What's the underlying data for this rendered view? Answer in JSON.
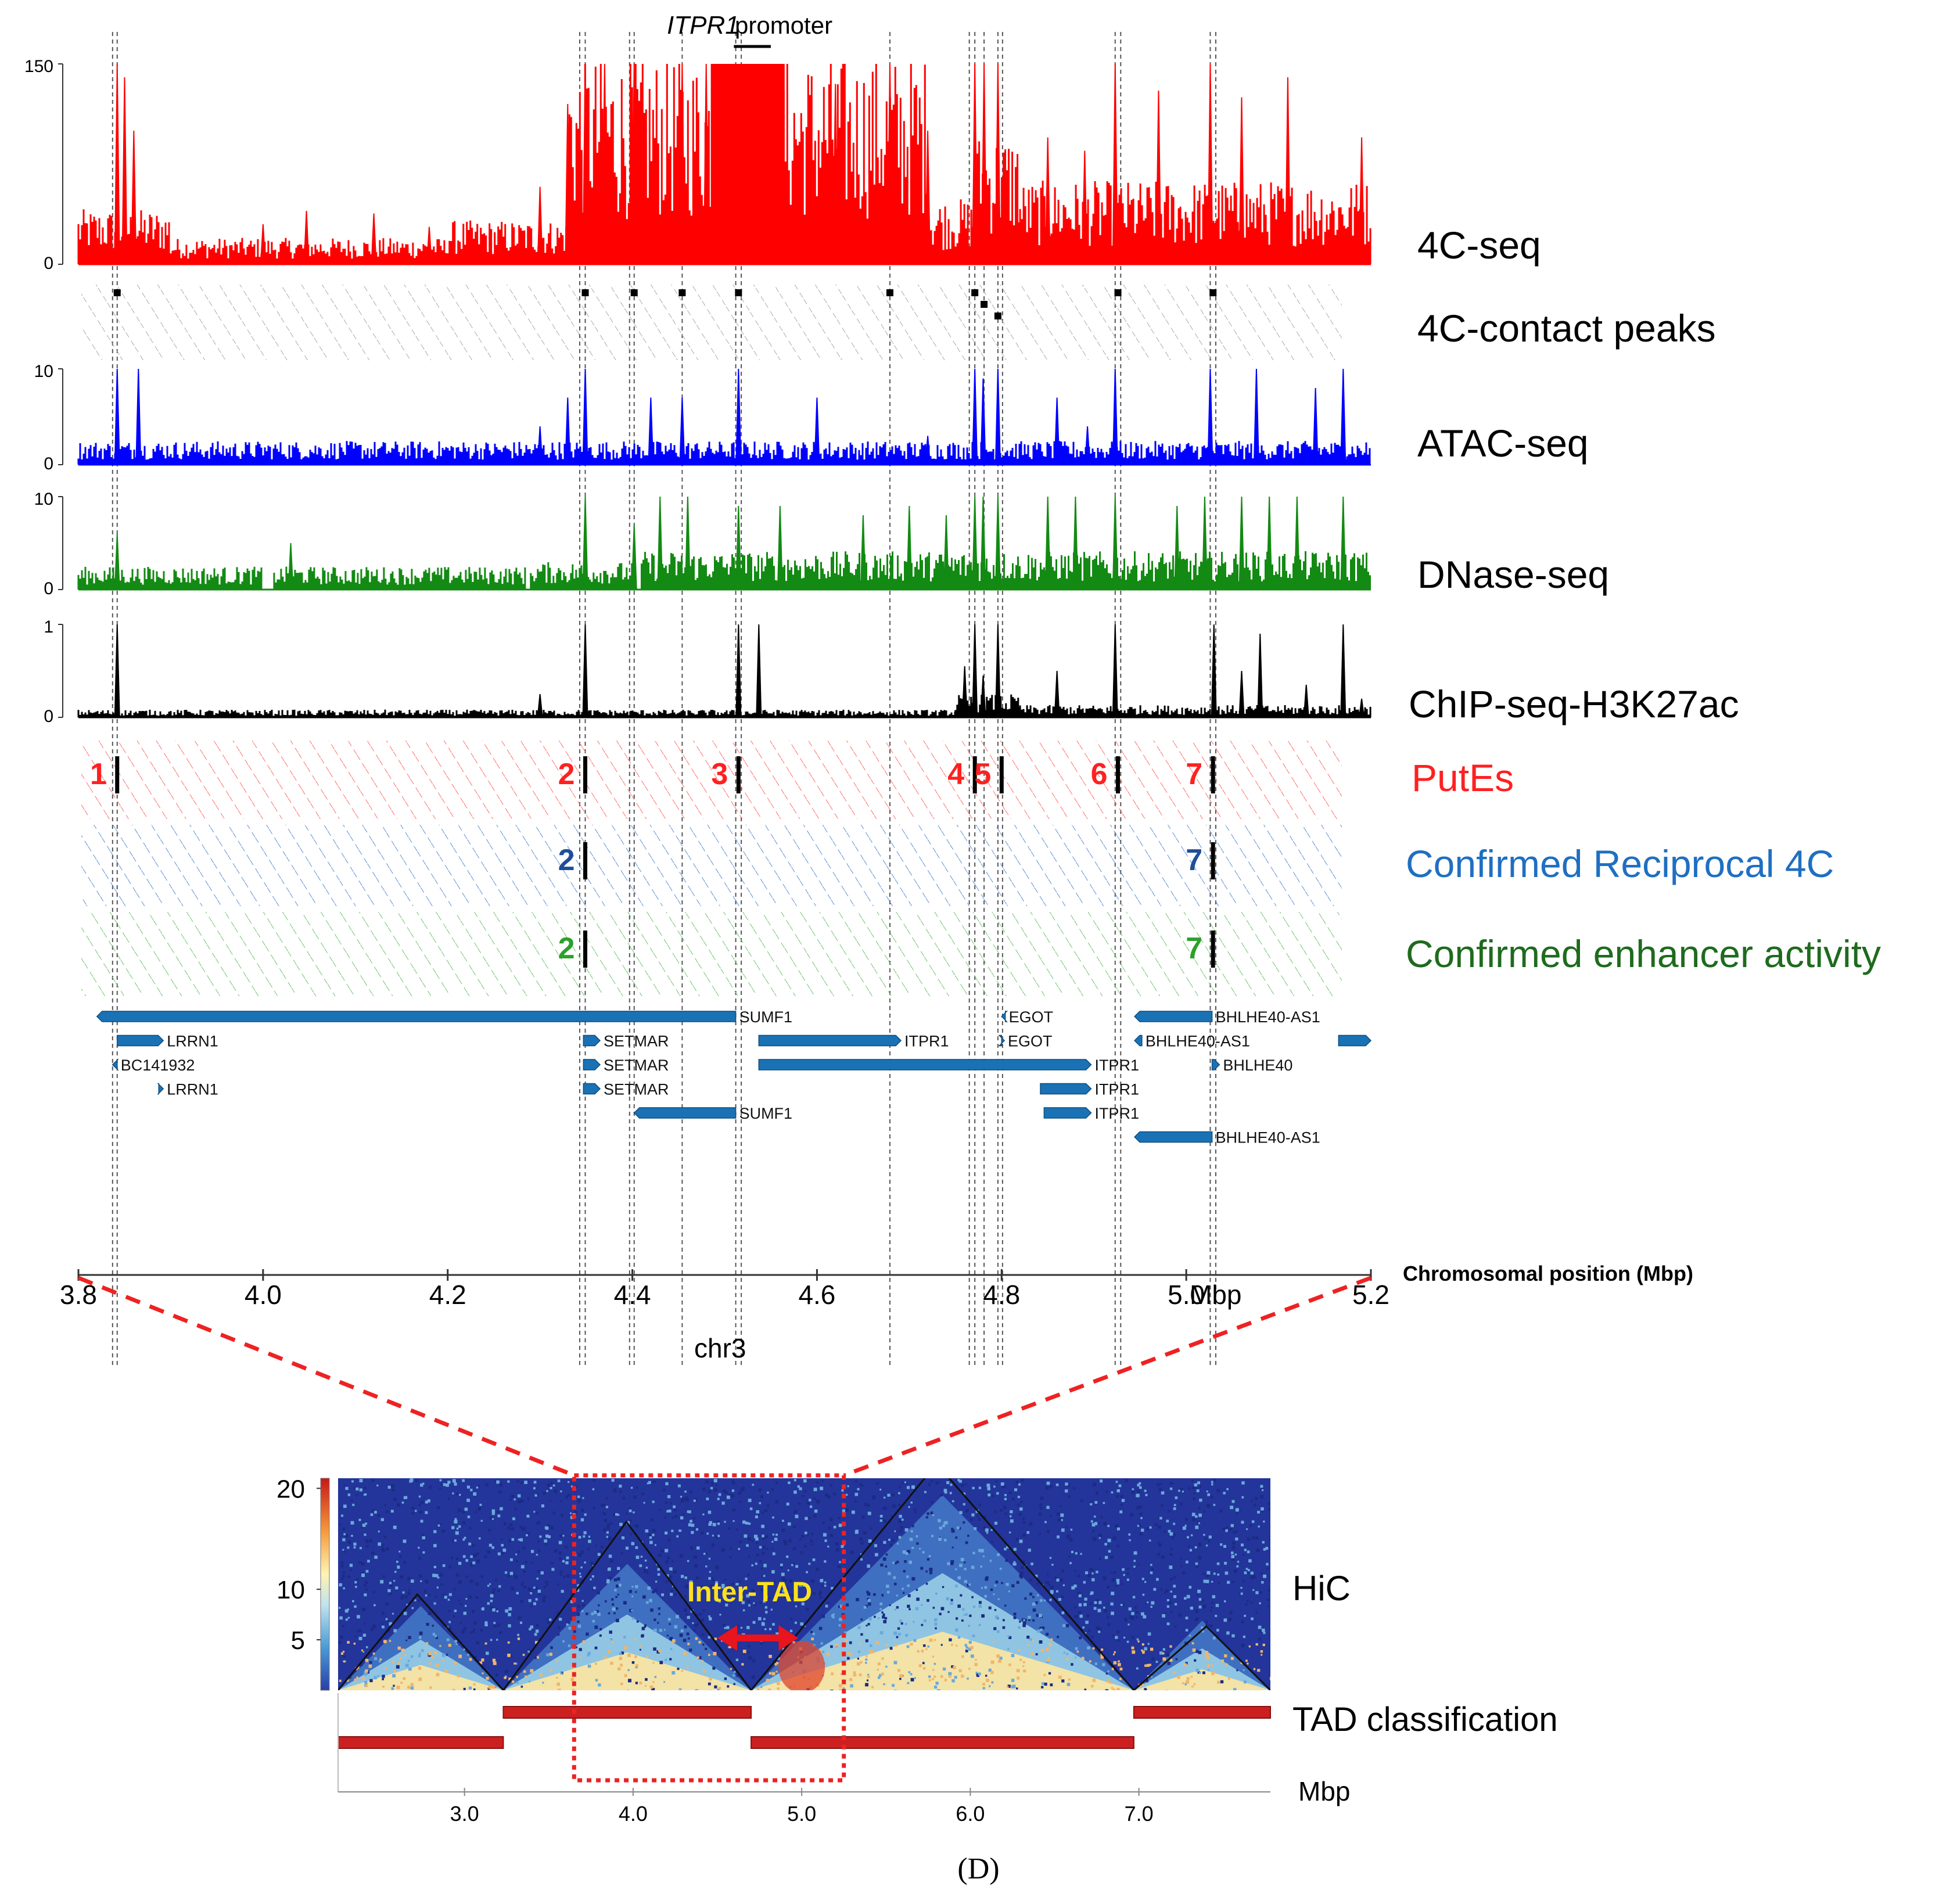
{
  "figure": {
    "caption": "(D)",
    "promoter_gene": "ITPR1",
    "promoter_word": "promoter",
    "chr_label": "chr3",
    "axis_title": "Chromosomal position (Mbp)",
    "mbp_unit": "Mbp"
  },
  "colors": {
    "c4": "#ff0000",
    "atac": "#0000ff",
    "dnase": "#138a13",
    "chip": "#000000",
    "pute": "#ff2020",
    "recip": "#1f6fc2",
    "enh": "#2ca02c",
    "gene": "#1a72b5",
    "recip_num": "#1f4e9a",
    "enh_label": "#1e6b1e",
    "zoom": "#ee2222",
    "tad_bar": "#cc2020"
  },
  "chart_data": [
    {
      "type": "area",
      "subtype": "genome_browser",
      "xlim": [
        3.8,
        5.2
      ],
      "xticks": [
        {
          "v": 3.8,
          "label": "3.8"
        },
        {
          "v": 4.0,
          "label": "4.0"
        },
        {
          "v": 4.2,
          "label": "4.2"
        },
        {
          "v": 4.4,
          "label": "4.4"
        },
        {
          "v": 4.6,
          "label": "4.6"
        },
        {
          "v": 4.8,
          "label": "4.8"
        },
        {
          "v": 5.0,
          "label": "5.0"
        },
        {
          "v": 5.2,
          "label": "5.2"
        }
      ],
      "guide_positions": [
        3.837,
        3.842,
        4.343,
        4.349,
        4.397,
        4.402,
        4.454,
        4.512,
        4.518,
        4.679,
        4.765,
        4.771,
        4.781,
        4.796,
        4.801,
        4.923,
        4.929,
        5.026,
        5.032
      ],
      "tracks": [
        {
          "key": "c4",
          "name": "4C-seq",
          "ymax": 150,
          "yticks": [
            "150",
            "0"
          ],
          "color_key": "c4",
          "peaks": [
            [
              3.842,
              150
            ],
            [
              3.85,
              140
            ],
            [
              3.86,
              100
            ],
            [
              4.0,
              30
            ],
            [
              4.047,
              40
            ],
            [
              4.12,
              38
            ],
            [
              4.18,
              28
            ],
            [
              4.3,
              58
            ],
            [
              4.33,
              120
            ],
            [
              4.349,
              150
            ],
            [
              4.37,
              150
            ],
            [
              4.402,
              150
            ],
            [
              4.454,
              150
            ],
            [
              4.48,
              150
            ],
            [
              4.515,
              150
            ],
            [
              4.56,
              150
            ],
            [
              4.62,
              135
            ],
            [
              4.679,
              150
            ],
            [
              4.72,
              100
            ],
            [
              4.771,
              150
            ],
            [
              4.781,
              150
            ],
            [
              4.796,
              150
            ],
            [
              4.85,
              95
            ],
            [
              4.89,
              85
            ],
            [
              4.923,
              150
            ],
            [
              4.97,
              130
            ],
            [
              5.026,
              150
            ],
            [
              5.06,
              125
            ],
            [
              5.11,
              140
            ],
            [
              5.19,
              95
            ]
          ],
          "dense": [
            [
              3.8,
              3.9,
              25
            ],
            [
              3.9,
              4.2,
              12
            ],
            [
              4.2,
              4.33,
              20
            ],
            [
              4.33,
              4.72,
              95
            ],
            [
              4.72,
              4.77,
              30
            ],
            [
              4.77,
              4.82,
              60
            ],
            [
              4.82,
              5.2,
              38
            ]
          ],
          "plateau": [
            4.485,
            4.565,
            150
          ]
        },
        {
          "key": "peaks",
          "name": "4C-contact peaks",
          "color_key": "chip",
          "marks": [
            [
              3.842,
              0
            ],
            [
              4.349,
              0
            ],
            [
              4.402,
              0
            ],
            [
              4.454,
              0
            ],
            [
              4.515,
              0
            ],
            [
              4.679,
              0
            ],
            [
              4.771,
              0
            ],
            [
              4.781,
              1
            ],
            [
              4.796,
              2
            ],
            [
              4.926,
              0
            ],
            [
              5.029,
              0
            ]
          ]
        },
        {
          "key": "atac",
          "name": "ATAC-seq",
          "ymax": 10,
          "yticks": [
            "10",
            "0"
          ],
          "color_key": "atac",
          "peaks": [
            [
              3.842,
              10
            ],
            [
              3.865,
              10
            ],
            [
              4.3,
              4
            ],
            [
              4.33,
              7
            ],
            [
              4.349,
              10
            ],
            [
              4.42,
              7
            ],
            [
              4.454,
              7
            ],
            [
              4.515,
              10
            ],
            [
              4.6,
              7
            ],
            [
              4.72,
              3
            ],
            [
              4.771,
              10
            ],
            [
              4.78,
              9
            ],
            [
              4.796,
              10
            ],
            [
              4.86,
              7
            ],
            [
              4.893,
              4
            ],
            [
              4.923,
              10
            ],
            [
              5.026,
              10
            ],
            [
              5.076,
              10
            ],
            [
              5.14,
              8
            ],
            [
              5.17,
              10
            ]
          ],
          "dense": [
            [
              3.8,
              5.2,
              1.5
            ]
          ]
        },
        {
          "key": "dnase",
          "name": "DNase-seq",
          "ymax": 10,
          "yticks": [
            "10",
            "0"
          ],
          "color_key": "dnase",
          "peaks": [
            [
              3.842,
              6
            ],
            [
              4.03,
              5
            ],
            [
              4.349,
              10
            ],
            [
              4.402,
              7
            ],
            [
              4.43,
              10
            ],
            [
              4.46,
              10
            ],
            [
              4.515,
              9
            ],
            [
              4.56,
              9
            ],
            [
              4.65,
              8
            ],
            [
              4.7,
              9
            ],
            [
              4.74,
              8
            ],
            [
              4.771,
              10
            ],
            [
              4.78,
              10
            ],
            [
              4.796,
              10
            ],
            [
              4.85,
              10
            ],
            [
              4.88,
              10
            ],
            [
              4.923,
              10
            ],
            [
              4.99,
              9
            ],
            [
              5.02,
              10
            ],
            [
              5.06,
              10
            ],
            [
              5.09,
              10
            ],
            [
              5.12,
              10
            ],
            [
              5.17,
              10
            ]
          ],
          "dense": [
            [
              3.8,
              4.0,
              1.5
            ],
            [
              4.012,
              4.285,
              1.5
            ],
            [
              4.29,
              4.4,
              1.8
            ],
            [
              4.41,
              5.2,
              2.5
            ]
          ]
        },
        {
          "key": "chip",
          "name": "ChIP-seq-H3K27ac",
          "ymax": 1,
          "yticks": [
            "1",
            "0"
          ],
          "color_key": "chip",
          "peaks": [
            [
              3.842,
              1
            ],
            [
              4.3,
              0.25
            ],
            [
              4.349,
              1
            ],
            [
              4.515,
              1
            ],
            [
              4.537,
              1
            ],
            [
              4.76,
              0.55
            ],
            [
              4.771,
              1
            ],
            [
              4.78,
              0.45
            ],
            [
              4.796,
              1
            ],
            [
              4.86,
              0.5
            ],
            [
              4.923,
              1
            ],
            [
              5.03,
              1
            ],
            [
              5.06,
              0.5
            ],
            [
              5.08,
              0.9
            ],
            [
              5.13,
              0.35
            ],
            [
              5.17,
              1
            ],
            [
              5.19,
              0.2
            ]
          ],
          "dense": [
            [
              3.8,
              4.75,
              0.05
            ],
            [
              4.75,
              4.82,
              0.15
            ],
            [
              4.82,
              5.2,
              0.08
            ]
          ]
        }
      ],
      "pute_label": "PutEs",
      "recip_label": "Confirmed Reciprocal 4C",
      "enh_label": "Confirmed enhancer activity",
      "putes": [
        {
          "num": "1",
          "pos": 3.842
        },
        {
          "num": "2",
          "pos": 4.349
        },
        {
          "num": "3",
          "pos": 4.515
        },
        {
          "num": "4",
          "pos": 4.771
        },
        {
          "num": "5",
          "pos": 4.8
        },
        {
          "num": "6",
          "pos": 4.926
        },
        {
          "num": "7",
          "pos": 5.029
        }
      ],
      "recip": [
        {
          "num": "2",
          "pos": 4.349
        },
        {
          "num": "7",
          "pos": 5.029
        }
      ],
      "enh": [
        {
          "num": "2",
          "pos": 4.349
        },
        {
          "num": "7",
          "pos": 5.029
        }
      ],
      "genes": [
        {
          "name": "SUMF1",
          "start": 3.82,
          "end": 4.512,
          "row": 0,
          "dir": "-"
        },
        {
          "name": "EGOT",
          "start": 4.8,
          "end": 4.804,
          "row": 0,
          "dir": "-"
        },
        {
          "name": "BHLHE40-AS1",
          "start": 4.944,
          "end": 5.028,
          "row": 0,
          "dir": "-"
        },
        {
          "name": "LRRN1",
          "start": 3.842,
          "end": 3.892,
          "row": 1,
          "dir": "+"
        },
        {
          "name": "SETMAR",
          "start": 4.347,
          "end": 4.365,
          "row": 1,
          "dir": "+"
        },
        {
          "name": "ITPR1",
          "start": 4.537,
          "end": 4.691,
          "row": 1,
          "dir": "+"
        },
        {
          "name": "EGOT",
          "start": 4.8,
          "end": 4.803,
          "row": 1,
          "dir": "+"
        },
        {
          "name": "BHLHE40-AS1",
          "start": 4.944,
          "end": 4.952,
          "row": 1,
          "dir": "-"
        },
        {
          "name": "",
          "start": 5.165,
          "end": 5.2,
          "row": 1,
          "dir": "+"
        },
        {
          "name": "BC141932",
          "start": 3.837,
          "end": 3.842,
          "row": 2,
          "dir": "-"
        },
        {
          "name": "SETMAR",
          "start": 4.347,
          "end": 4.365,
          "row": 2,
          "dir": "+"
        },
        {
          "name": "ITPR1",
          "start": 4.537,
          "end": 4.897,
          "row": 2,
          "dir": "+"
        },
        {
          "name": "BHLHE40",
          "start": 5.028,
          "end": 5.036,
          "row": 2,
          "dir": "+"
        },
        {
          "name": "LRRN1",
          "start": 3.887,
          "end": 3.892,
          "row": 3,
          "dir": "+"
        },
        {
          "name": "SETMAR",
          "start": 4.347,
          "end": 4.365,
          "row": 3,
          "dir": "+"
        },
        {
          "name": "ITPR1",
          "start": 4.842,
          "end": 4.897,
          "row": 3,
          "dir": "+"
        },
        {
          "name": "SUMF1",
          "start": 4.402,
          "end": 4.512,
          "row": 4,
          "dir": "-"
        },
        {
          "name": "ITPR1",
          "start": 4.846,
          "end": 4.897,
          "row": 4,
          "dir": "+"
        },
        {
          "name": "BHLHE40-AS1",
          "start": 4.944,
          "end": 5.028,
          "row": 5,
          "dir": "-"
        }
      ],
      "promoter_span": [
        4.51,
        4.55
      ]
    },
    {
      "type": "heatmap",
      "title": "HiC",
      "xlim": [
        2.25,
        7.78
      ],
      "xticks": [
        {
          "v": 3.0,
          "label": "3.0"
        },
        {
          "v": 4.0,
          "label": "4.0"
        },
        {
          "v": 5.0,
          "label": "5.0"
        },
        {
          "v": 6.0,
          "label": "6.0"
        },
        {
          "v": 7.0,
          "label": "7.0"
        }
      ],
      "xlabel": "Mbp",
      "colorbar": {
        "min": 0,
        "max": 21,
        "ticks": [
          {
            "v": 20,
            "label": "20"
          },
          {
            "v": 10,
            "label": "10"
          },
          {
            "v": 5,
            "label": "5"
          }
        ]
      },
      "tads": [
        [
          2.25,
          3.23
        ],
        [
          3.23,
          4.7
        ],
        [
          4.7,
          6.97
        ],
        [
          6.97,
          7.78
        ]
      ],
      "tad_label": "TAD classification",
      "tad_rows": [
        [
          [
            3.23,
            4.7
          ],
          [
            6.97,
            7.78
          ]
        ],
        [
          [
            2.25,
            3.23
          ],
          [
            4.7,
            6.97
          ]
        ]
      ],
      "annotation": "Inter-TAD",
      "arrow_span": [
        4.5,
        4.98
      ],
      "zoom_box": [
        3.65,
        5.25
      ]
    }
  ]
}
